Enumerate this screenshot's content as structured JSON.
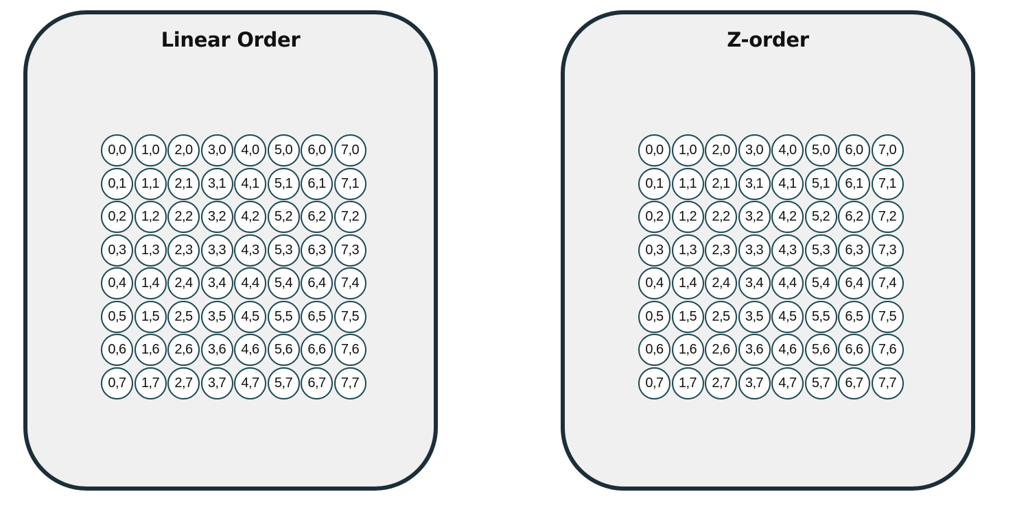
{
  "panels": [
    {
      "title": "Linear Order",
      "cells": [
        [
          "0,0",
          "1,0",
          "2,0",
          "3,0",
          "4,0",
          "5,0",
          "6,0",
          "7,0"
        ],
        [
          "0,1",
          "1,1",
          "2,1",
          "3,1",
          "4,1",
          "5,1",
          "6,1",
          "7,1"
        ],
        [
          "0,2",
          "1,2",
          "2,2",
          "3,2",
          "4,2",
          "5,2",
          "6,2",
          "7,2"
        ],
        [
          "0,3",
          "1,3",
          "2,3",
          "3,3",
          "4,3",
          "5,3",
          "6,3",
          "7,3"
        ],
        [
          "0,4",
          "1,4",
          "2,4",
          "3,4",
          "4,4",
          "5,4",
          "6,4",
          "7,4"
        ],
        [
          "0,5",
          "1,5",
          "2,5",
          "3,5",
          "4,5",
          "5,5",
          "6,5",
          "7,5"
        ],
        [
          "0,6",
          "1,6",
          "2,6",
          "3,6",
          "4,6",
          "5,6",
          "6,6",
          "7,6"
        ],
        [
          "0,7",
          "1,7",
          "2,7",
          "3,7",
          "4,7",
          "5,7",
          "6,7",
          "7,7"
        ]
      ]
    },
    {
      "title": "Z-order",
      "cells": [
        [
          "0,0",
          "1,0",
          "2,0",
          "3,0",
          "4,0",
          "5,0",
          "6,0",
          "7,0"
        ],
        [
          "0,1",
          "1,1",
          "2,1",
          "3,1",
          "4,1",
          "5,1",
          "6,1",
          "7,1"
        ],
        [
          "0,2",
          "1,2",
          "2,2",
          "3,2",
          "4,2",
          "5,2",
          "6,2",
          "7,2"
        ],
        [
          "0,3",
          "1,3",
          "2,3",
          "3,3",
          "4,3",
          "5,3",
          "6,3",
          "7,3"
        ],
        [
          "0,4",
          "1,4",
          "2,4",
          "3,4",
          "4,4",
          "5,4",
          "6,4",
          "7,4"
        ],
        [
          "0,5",
          "1,5",
          "2,5",
          "3,5",
          "4,5",
          "5,5",
          "6,5",
          "7,5"
        ],
        [
          "0,6",
          "1,6",
          "2,6",
          "3,6",
          "4,6",
          "5,6",
          "6,6",
          "7,6"
        ],
        [
          "0,7",
          "1,7",
          "2,7",
          "3,7",
          "4,7",
          "5,7",
          "6,7",
          "7,7"
        ]
      ]
    }
  ],
  "colors": {
    "panel_border": "#1c2f38",
    "panel_fill": "#f0f0f0",
    "cell_border": "#1f4a55",
    "cell_fill": "#ffffff"
  }
}
